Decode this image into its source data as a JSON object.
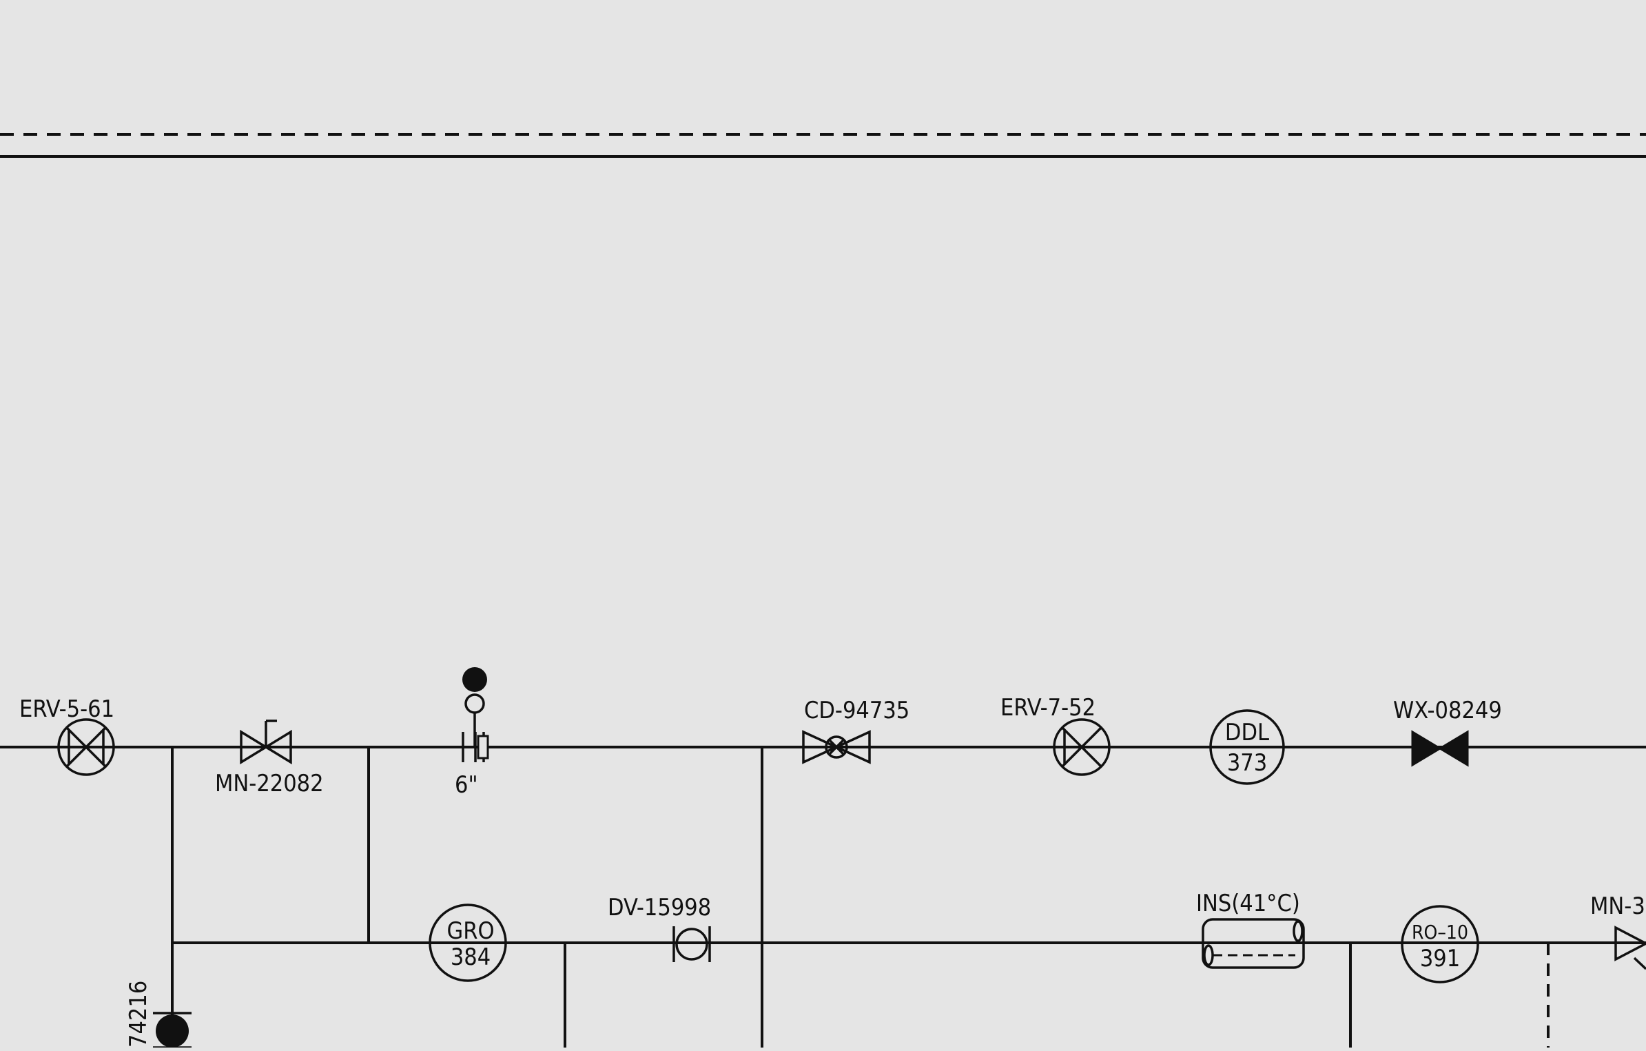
{
  "diagram": {
    "labels": {
      "erv_5_61": "ERV-5-61",
      "mn_22082": "MN-22082",
      "pipe_size": "6\"",
      "cd_94735": "CD-94735",
      "erv_7_52": "ERV-7-52",
      "ddl_tag": "DDL",
      "ddl_num": "373",
      "wx_08249": "WX-08249",
      "gro_tag": "GRO",
      "gro_num": "384",
      "dv_15998": "DV-15998",
      "ins": "INS(41°C)",
      "ro_tag": "RO–10",
      "ro_num": "391",
      "mn_partial": "MN-3",
      "vertical_partial": "74216"
    }
  }
}
